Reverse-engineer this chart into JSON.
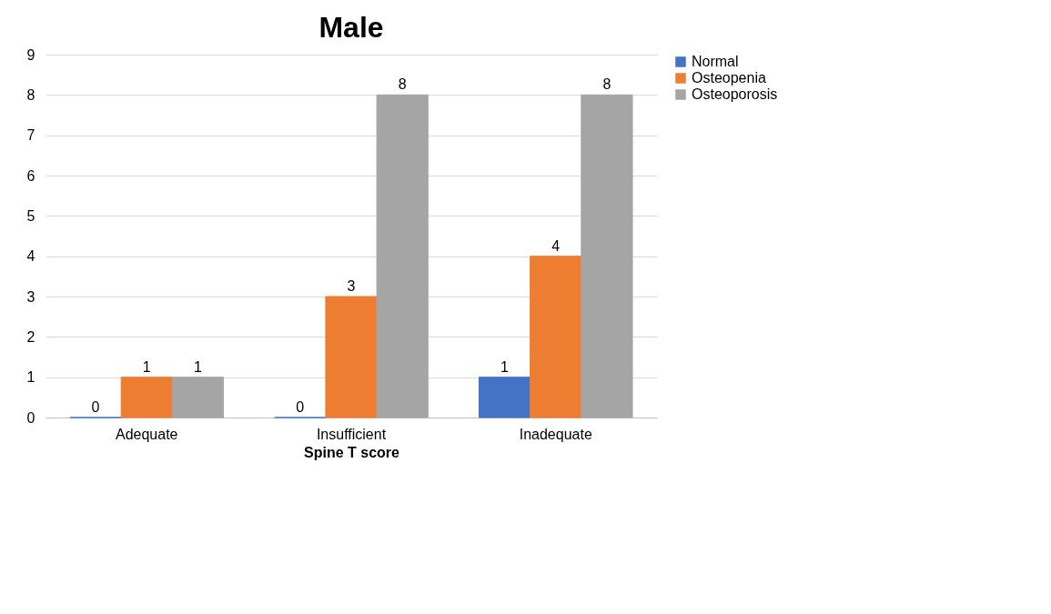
{
  "chart_data": {
    "type": "bar",
    "title": "Male",
    "xlabel": "Spine T score",
    "categories": [
      "Adequate",
      "Insufficient",
      "Inadequate"
    ],
    "series": [
      {
        "name": "Normal",
        "color": "#4472c4",
        "values": [
          0,
          0,
          1
        ]
      },
      {
        "name": "Osteopenia",
        "color": "#ed7d31",
        "values": [
          1,
          3,
          4
        ]
      },
      {
        "name": "Osteoporosis",
        "color": "#a5a5a5",
        "values": [
          1,
          8,
          8
        ]
      }
    ],
    "ylim": [
      0,
      9
    ],
    "yticks": [
      0,
      1,
      2,
      3,
      4,
      5,
      6,
      7,
      8,
      9
    ],
    "grid": "y",
    "legend": "right",
    "data_labels": true
  }
}
